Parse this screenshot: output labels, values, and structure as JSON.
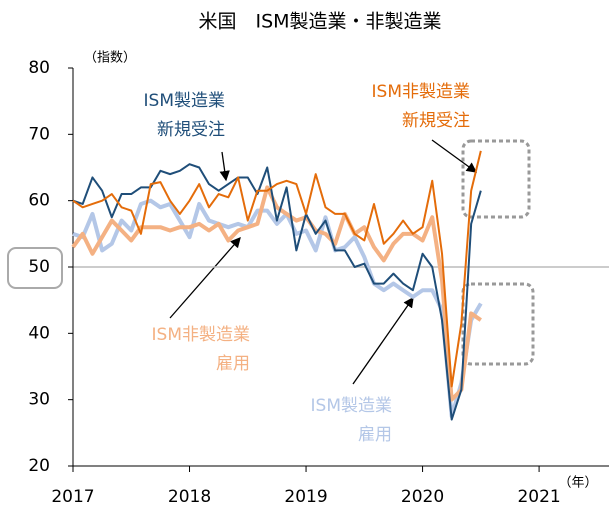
{
  "chart_data": {
    "type": "line",
    "title": "米国　ISM製造業・非製造業",
    "y_label": "（指数）",
    "x_label": "（年）",
    "xlim": [
      2017,
      2021.6
    ],
    "xticks": [
      2017,
      2018,
      2019,
      2020,
      2021
    ],
    "ylim": [
      20,
      80
    ],
    "yticks": [
      20,
      30,
      40,
      50,
      60,
      70,
      80
    ],
    "reference_line": 50,
    "x": [
      2017,
      2017.083,
      2017.167,
      2017.25,
      2017.333,
      2017.417,
      2017.5,
      2017.583,
      2017.667,
      2017.75,
      2017.833,
      2017.917,
      2018,
      2018.083,
      2018.167,
      2018.25,
      2018.333,
      2018.417,
      2018.5,
      2018.583,
      2018.667,
      2018.75,
      2018.833,
      2018.917,
      2019,
      2019.083,
      2019.167,
      2019.25,
      2019.333,
      2019.417,
      2019.5,
      2019.583,
      2019.667,
      2019.75,
      2019.833,
      2019.917,
      2020,
      2020.083,
      2020.167,
      2020.25,
      2020.333,
      2020.417,
      2020.5
    ],
    "series": [
      {
        "name": "ISM製造業 雇用",
        "color": "#b4c7e7",
        "width": 4,
        "values": [
          55,
          54.5,
          58,
          52.5,
          53.5,
          57,
          55.5,
          59.5,
          60,
          59,
          59.5,
          57,
          54.5,
          59.5,
          57,
          56.5,
          56,
          56.5,
          56,
          58.5,
          58.5,
          56.5,
          58,
          55,
          55.5,
          52.5,
          57.5,
          52.5,
          53,
          54.5,
          51.5,
          47.5,
          46.5,
          47.5,
          46.5,
          45.5,
          46.5,
          46.5,
          43.5,
          27.5,
          32.5,
          42,
          44.5
        ]
      },
      {
        "name": "ISM非製造業 雇用",
        "color": "#f4b183",
        "width": 4,
        "values": [
          53,
          55,
          52,
          54.5,
          57,
          55.5,
          54,
          56,
          56,
          56,
          55.5,
          56,
          56,
          56.5,
          55.5,
          56.5,
          54,
          55.5,
          56,
          56.5,
          62,
          59,
          58,
          57,
          57.5,
          55.5,
          55,
          53.5,
          58,
          55,
          56,
          53,
          51,
          53.5,
          55,
          55,
          54,
          57.5,
          48,
          30,
          31.5,
          43,
          42
        ]
      },
      {
        "name": "ISM製造業 新規受注",
        "color": "#1f4e79",
        "width": 2,
        "values": [
          60,
          59.5,
          63.5,
          61.5,
          57.5,
          61,
          61,
          62,
          62,
          64.5,
          64,
          64.5,
          65.5,
          65,
          62.5,
          61.5,
          62.5,
          63.5,
          63.5,
          61,
          65,
          57,
          62,
          52.5,
          58,
          55,
          57,
          52.5,
          52.5,
          50,
          50.5,
          47.5,
          47.5,
          49,
          47.5,
          46.5,
          52,
          50,
          42,
          27,
          31.5,
          56.5,
          61.5
        ]
      },
      {
        "name": "ISM非製造業 新規受注",
        "color": "#e46c0a",
        "width": 2,
        "values": [
          60,
          59,
          59.5,
          60,
          61,
          59,
          58.5,
          55,
          62.5,
          62.8,
          60,
          58,
          60,
          62.5,
          59,
          61,
          60.5,
          63.5,
          57,
          61.5,
          61.5,
          62.5,
          63,
          62.5,
          58,
          64,
          59,
          58,
          58,
          55,
          54,
          59.5,
          53.5,
          55,
          57,
          55,
          56,
          63,
          52,
          32,
          41.5,
          61.5,
          67.5
        ]
      }
    ],
    "annotations": [
      {
        "lines": [
          "ISM製造業",
          "新規受注"
        ],
        "color": "#1f4e79"
      },
      {
        "lines": [
          "ISM非製造業",
          "新規受注"
        ],
        "color": "#e46c0a"
      },
      {
        "lines": [
          "ISM非製造業",
          "雇用"
        ],
        "color": "#f4b183"
      },
      {
        "lines": [
          "ISM製造業",
          "雇用"
        ],
        "color": "#b4c7e7"
      }
    ]
  }
}
